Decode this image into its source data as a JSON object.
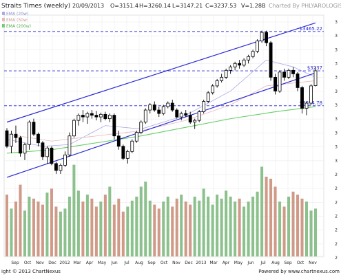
{
  "header": {
    "title": "Straits Times (weekly)",
    "date": "20/09/2013",
    "open": "O=3151.4",
    "high": "H=3260.14",
    "low": "L=3147.21",
    "close": "C=3237.53",
    "volume": "V=1.28B",
    "watermark": "Charted By PHLYAROLOGIST"
  },
  "legend": [
    {
      "label": "EMA (20w)",
      "color": "#a9a9e8"
    },
    {
      "label": "EMA (50w)",
      "color": "#e8b8b8"
    },
    {
      "label": "EMA (200w)",
      "color": "#66cc66"
    }
  ],
  "footer": {
    "copyright": "ight © 2013 ChartNexus",
    "powered": "Powered by www.chartnexus.com"
  },
  "colors": {
    "channel": "#2a2ad6",
    "level": "#2a2ad6",
    "vol_up": "#8cc08c",
    "vol_down": "#d09a88",
    "grid": "#ececec",
    "candle": "#000000"
  },
  "chart_data": {
    "type": "candlestick",
    "title": "Straits Times (weekly)",
    "x_ticks": [
      "Sep",
      "Oct",
      "Nov",
      "Dec",
      "2012",
      "Mar",
      "Apr",
      "May",
      "Jun",
      "Jul",
      "Aug",
      "Sep",
      "Oct",
      "Nov",
      "Dec",
      "2013",
      "Mar",
      "Apr",
      "May",
      "Jun",
      "Jul",
      "Aug",
      "Sep",
      "Oct",
      "Nov"
    ],
    "y_tick_labels": [
      "3",
      "3",
      "3",
      "3",
      "3",
      "3",
      "3",
      "3",
      "3",
      "3",
      "3",
      "2",
      "2",
      "2",
      "2",
      "2",
      "2",
      "2"
    ],
    "ylim": [
      2580,
      3560
    ],
    "levels": [
      {
        "value": 3465.22,
        "label": "$3465.22"
      },
      {
        "value": 3237,
        "label": "$3237"
      },
      {
        "value": 3034.78,
        "label": "$3034.78"
      }
    ],
    "channel": {
      "upper": [
        [
          0,
          2940
        ],
        [
          69,
          3515
        ]
      ],
      "lower": [
        [
          0,
          2620
        ],
        [
          69,
          3225
        ]
      ]
    },
    "ohlc": [
      [
        2890,
        2905,
        2790,
        2800
      ],
      [
        2800,
        2890,
        2760,
        2870
      ],
      [
        2870,
        2920,
        2820,
        2850
      ],
      [
        2850,
        2860,
        2740,
        2760
      ],
      [
        2760,
        2820,
        2720,
        2810
      ],
      [
        2810,
        2950,
        2780,
        2940
      ],
      [
        2940,
        2960,
        2860,
        2870
      ],
      [
        2870,
        2880,
        2800,
        2820
      ],
      [
        2820,
        2830,
        2720,
        2740
      ],
      [
        2740,
        2800,
        2700,
        2790
      ],
      [
        2790,
        2800,
        2690,
        2700
      ],
      [
        2700,
        2710,
        2640,
        2660
      ],
      [
        2660,
        2700,
        2640,
        2690
      ],
      [
        2690,
        2770,
        2680,
        2750
      ],
      [
        2750,
        2880,
        2740,
        2860
      ],
      [
        2860,
        2960,
        2850,
        2950
      ],
      [
        2950,
        2990,
        2920,
        2980
      ],
      [
        2980,
        3010,
        2940,
        2970
      ],
      [
        2970,
        3000,
        2930,
        2990
      ],
      [
        2990,
        3010,
        2960,
        2980
      ],
      [
        2980,
        3005,
        2950,
        2970
      ],
      [
        2970,
        2995,
        2940,
        2985
      ],
      [
        2985,
        3000,
        2950,
        2960
      ],
      [
        2960,
        2990,
        2940,
        2980
      ],
      [
        2980,
        2990,
        2840,
        2860
      ],
      [
        2860,
        2890,
        2780,
        2800
      ],
      [
        2800,
        2810,
        2720,
        2730
      ],
      [
        2730,
        2780,
        2700,
        2770
      ],
      [
        2770,
        2840,
        2760,
        2830
      ],
      [
        2830,
        2890,
        2820,
        2880
      ],
      [
        2880,
        2950,
        2870,
        2940
      ],
      [
        2940,
        3020,
        2930,
        3010
      ],
      [
        3010,
        3050,
        2990,
        3040
      ],
      [
        3040,
        3060,
        3000,
        3010
      ],
      [
        3010,
        3030,
        2970,
        2990
      ],
      [
        2990,
        3040,
        2980,
        3030
      ],
      [
        3030,
        3060,
        3020,
        3050
      ],
      [
        3050,
        3070,
        3000,
        3010
      ],
      [
        3010,
        3020,
        2960,
        2970
      ],
      [
        2970,
        3000,
        2950,
        2990
      ],
      [
        2990,
        3010,
        2970,
        2980
      ],
      [
        2980,
        3000,
        2930,
        2940
      ],
      [
        2940,
        2960,
        2900,
        2950
      ],
      [
        2950,
        3010,
        2940,
        3000
      ],
      [
        3000,
        3070,
        2990,
        3060
      ],
      [
        3060,
        3120,
        3050,
        3110
      ],
      [
        3110,
        3160,
        3100,
        3150
      ],
      [
        3150,
        3190,
        3140,
        3180
      ],
      [
        3180,
        3220,
        3170,
        3200
      ],
      [
        3200,
        3250,
        3190,
        3240
      ],
      [
        3240,
        3270,
        3220,
        3260
      ],
      [
        3260,
        3290,
        3240,
        3280
      ],
      [
        3280,
        3300,
        3250,
        3270
      ],
      [
        3270,
        3310,
        3260,
        3300
      ],
      [
        3300,
        3330,
        3280,
        3320
      ],
      [
        3320,
        3360,
        3310,
        3350
      ],
      [
        3350,
        3420,
        3340,
        3410
      ],
      [
        3410,
        3470,
        3400,
        3460
      ],
      [
        3460,
        3470,
        3380,
        3400
      ],
      [
        3400,
        3410,
        3180,
        3200
      ],
      [
        3200,
        3220,
        3100,
        3120
      ],
      [
        3120,
        3240,
        3110,
        3230
      ],
      [
        3230,
        3250,
        3180,
        3200
      ],
      [
        3200,
        3250,
        3190,
        3240
      ],
      [
        3240,
        3260,
        3200,
        3220
      ],
      [
        3220,
        3230,
        3120,
        3140
      ],
      [
        3140,
        3150,
        2990,
        3020
      ],
      [
        3020,
        3060,
        2980,
        3050
      ],
      [
        3050,
        3160,
        3040,
        3150
      ],
      [
        3151.4,
        3260.14,
        3147.21,
        3237.53
      ]
    ],
    "volume": [
      0.62,
      0.48,
      0.55,
      0.72,
      0.46,
      0.6,
      0.58,
      0.55,
      0.52,
      0.64,
      0.68,
      0.5,
      0.45,
      0.48,
      0.6,
      0.92,
      0.66,
      0.55,
      0.62,
      0.58,
      0.5,
      0.55,
      0.62,
      0.7,
      0.52,
      0.58,
      0.45,
      0.5,
      0.56,
      0.6,
      0.7,
      0.75,
      0.56,
      0.52,
      0.48,
      0.55,
      0.6,
      0.5,
      0.58,
      0.62,
      0.55,
      0.52,
      0.6,
      0.56,
      0.68,
      0.6,
      0.52,
      0.62,
      0.58,
      0.66,
      0.6,
      0.55,
      0.58,
      0.5,
      0.55,
      0.6,
      0.65,
      0.9,
      0.8,
      0.78,
      0.7,
      0.55,
      0.5,
      0.6,
      0.65,
      0.62,
      0.58,
      0.55,
      0.46,
      0.48
    ],
    "ema": [
      {
        "name": "EMA (20w)",
        "values": [
          [
            0,
            2840
          ],
          [
            8,
            2800
          ],
          [
            14,
            2810
          ],
          [
            22,
            2920
          ],
          [
            30,
            2900
          ],
          [
            40,
            2980
          ],
          [
            50,
            3120
          ],
          [
            58,
            3300
          ],
          [
            64,
            3260
          ],
          [
            69,
            3200
          ]
        ]
      },
      {
        "name": "EMA (50w)",
        "values": [
          [
            0,
            2870
          ],
          [
            10,
            2830
          ],
          [
            20,
            2860
          ],
          [
            30,
            2890
          ],
          [
            40,
            2950
          ],
          [
            50,
            3040
          ],
          [
            58,
            3150
          ],
          [
            69,
            3180
          ]
        ]
      },
      {
        "name": "EMA (200w)",
        "values": [
          [
            0,
            2760
          ],
          [
            10,
            2780
          ],
          [
            20,
            2820
          ],
          [
            30,
            2860
          ],
          [
            40,
            2910
          ],
          [
            50,
            2960
          ],
          [
            60,
            3000
          ],
          [
            69,
            3030
          ]
        ]
      }
    ]
  }
}
